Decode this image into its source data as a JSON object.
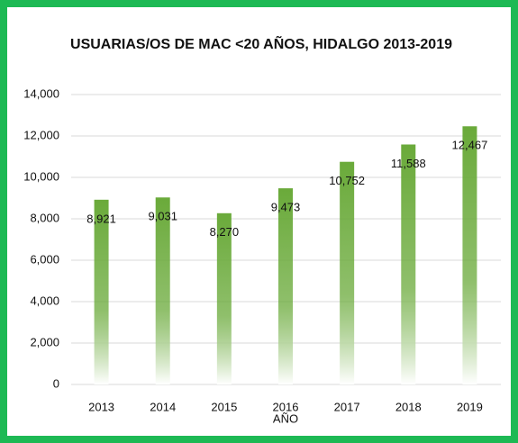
{
  "chart_data": {
    "type": "bar",
    "title": "USUARIAS/OS DE MAC <20 AÑOS, HIDALGO 2013-2019",
    "x_label": "AÑO",
    "categories": [
      "2013",
      "2014",
      "2015",
      "2016",
      "2017",
      "2018",
      "2019"
    ],
    "values": [
      8921,
      9031,
      8270,
      9473,
      10752,
      11588,
      12467
    ],
    "value_labels": [
      "8,921",
      "9,031",
      "8,270",
      "9,473",
      "10,752",
      "11,588",
      "12,467"
    ],
    "color": "#6aaa3a",
    "ylim": [
      0,
      14000
    ],
    "yticks": [
      0,
      {
        "value": 2000,
        "label": "2,000"
      },
      {
        "value": 4000,
        "label": "4,000"
      },
      {
        "value": 6000,
        "label": "6,000"
      },
      {
        "value": 8000,
        "label": "8,000"
      },
      {
        "value": 10000,
        "label": "10,000"
      },
      {
        "value": 12000,
        "label": "12,000"
      },
      {
        "value": 14000,
        "label": "14,000"
      }
    ],
    "grid": true
  }
}
